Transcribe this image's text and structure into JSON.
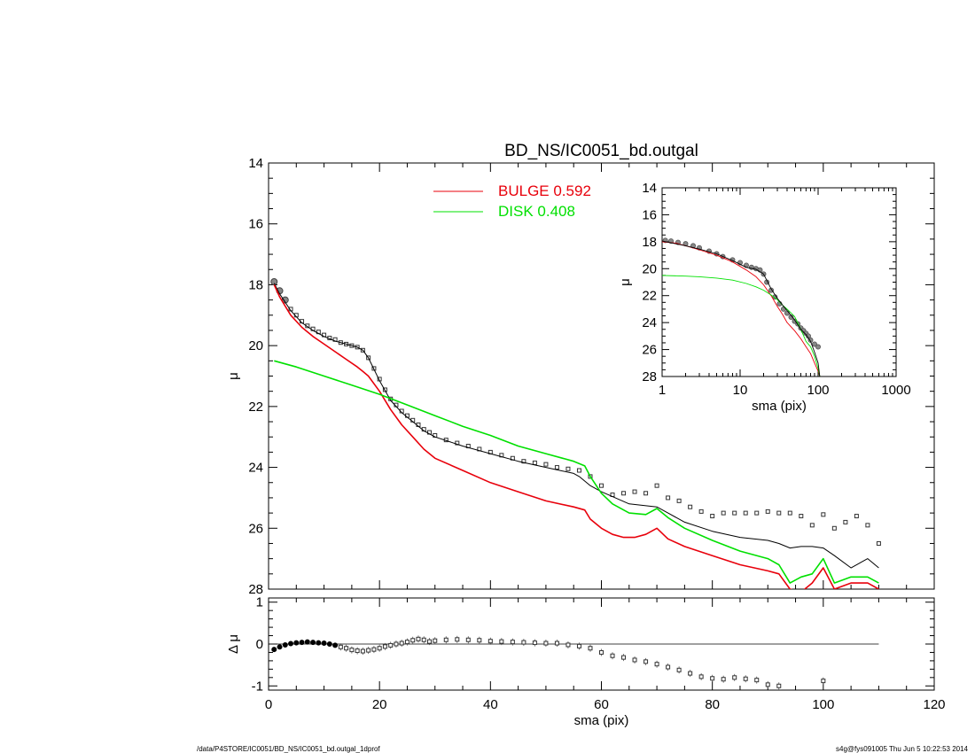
{
  "chart_data": [
    {
      "type": "scatter",
      "title": "BD_NS/IC0051_bd.outgal",
      "xlabel": "",
      "ylabel": "μ",
      "xlim": [
        0,
        120
      ],
      "ylim": [
        28,
        14
      ],
      "y_inverted": true,
      "xticks": [
        "0",
        "20",
        "40",
        "60",
        "80",
        "100",
        "120"
      ],
      "yticks": [
        "14",
        "16",
        "18",
        "20",
        "22",
        "24",
        "26",
        "28"
      ],
      "legend": [
        {
          "label": "BULGE  0.592",
          "color": "#e8000b"
        },
        {
          "label": "DISK  0.408",
          "color": "#00e000"
        }
      ],
      "legend_position": "top-center",
      "series": [
        {
          "role": "data",
          "marker": "square",
          "x": [
            1,
            2,
            3,
            4,
            5,
            6,
            7,
            8,
            9,
            10,
            11,
            12,
            13,
            14,
            15,
            16,
            17,
            18,
            19,
            20,
            21,
            22,
            23,
            24,
            25,
            26,
            27,
            28,
            29,
            30,
            32,
            34,
            36,
            38,
            40,
            42,
            44,
            46,
            48,
            50,
            52,
            54,
            56,
            58,
            60,
            62,
            64,
            66,
            68,
            70,
            72,
            74,
            76,
            78,
            80,
            82,
            84,
            86,
            88,
            90,
            92,
            94,
            96,
            98,
            100,
            102,
            104,
            106,
            108,
            110
          ],
          "y": [
            17.9,
            18.2,
            18.5,
            18.8,
            19.0,
            19.2,
            19.35,
            19.45,
            19.55,
            19.65,
            19.75,
            19.8,
            19.9,
            19.95,
            20.0,
            20.05,
            20.15,
            20.4,
            20.75,
            21.1,
            21.45,
            21.75,
            21.95,
            22.15,
            22.3,
            22.45,
            22.6,
            22.75,
            22.85,
            22.95,
            23.1,
            23.2,
            23.3,
            23.4,
            23.5,
            23.6,
            23.7,
            23.8,
            23.85,
            23.9,
            24.0,
            24.05,
            24.1,
            24.3,
            24.6,
            24.9,
            24.85,
            24.8,
            24.85,
            24.6,
            25.0,
            25.1,
            25.3,
            25.45,
            25.6,
            25.5,
            25.5,
            25.5,
            25.5,
            25.45,
            25.5,
            25.5,
            25.6,
            25.9,
            25.55,
            26.0,
            25.8,
            25.6,
            25.9,
            26.5
          ]
        },
        {
          "role": "model",
          "color": "#000000",
          "x": [
            1,
            2,
            4,
            6,
            8,
            10,
            12,
            14,
            16,
            17,
            18,
            20,
            22,
            24,
            26,
            28,
            30,
            35,
            40,
            45,
            50,
            55,
            56,
            58,
            60,
            65,
            70,
            72,
            75,
            80,
            85,
            90,
            92,
            94,
            96,
            98,
            100,
            102,
            105,
            108,
            110
          ],
          "y": [
            17.95,
            18.3,
            18.85,
            19.25,
            19.5,
            19.7,
            19.85,
            19.95,
            20.05,
            20.15,
            20.4,
            21.15,
            21.8,
            22.2,
            22.5,
            22.8,
            23.0,
            23.3,
            23.55,
            23.8,
            24.0,
            24.2,
            24.3,
            24.6,
            24.8,
            25.2,
            25.3,
            25.5,
            25.8,
            26.1,
            26.3,
            26.4,
            26.5,
            26.65,
            26.6,
            26.6,
            26.65,
            26.9,
            27.3,
            27.0,
            27.3
          ]
        },
        {
          "role": "bulge",
          "color": "#e8000b",
          "x": [
            1,
            2,
            4,
            6,
            8,
            10,
            12,
            14,
            16,
            17,
            18,
            20,
            22,
            24,
            26,
            28,
            30,
            35,
            40,
            45,
            50,
            55,
            57,
            58,
            60,
            62,
            64,
            66,
            68,
            70,
            72,
            75,
            80,
            85,
            90,
            92,
            94,
            96,
            98,
            100,
            102,
            105,
            108,
            110
          ],
          "y": [
            18.0,
            18.4,
            19.0,
            19.4,
            19.7,
            19.95,
            20.2,
            20.45,
            20.7,
            20.85,
            21.0,
            21.5,
            22.1,
            22.6,
            23.0,
            23.4,
            23.7,
            24.1,
            24.5,
            24.8,
            25.1,
            25.3,
            25.4,
            25.7,
            26.0,
            26.2,
            26.3,
            26.3,
            26.2,
            26.0,
            26.35,
            26.6,
            26.9,
            27.2,
            27.4,
            27.5,
            28.0,
            28.1,
            27.8,
            27.3,
            28.0,
            27.8,
            27.8,
            28.0
          ]
        },
        {
          "role": "disk",
          "color": "#00e000",
          "x": [
            1,
            5,
            10,
            15,
            20,
            25,
            30,
            35,
            40,
            45,
            50,
            55,
            57,
            58,
            60,
            62,
            65,
            68,
            70,
            72,
            75,
            80,
            85,
            90,
            92,
            94,
            96,
            98,
            100,
            102,
            105,
            108,
            110
          ],
          "y": [
            20.5,
            20.7,
            21.0,
            21.3,
            21.6,
            21.95,
            22.3,
            22.65,
            22.95,
            23.3,
            23.55,
            23.8,
            23.95,
            24.3,
            24.85,
            25.2,
            25.5,
            25.55,
            25.35,
            25.65,
            26.0,
            26.4,
            26.75,
            27.0,
            27.2,
            27.8,
            27.6,
            27.5,
            27.0,
            27.8,
            27.6,
            27.6,
            27.8
          ]
        }
      ]
    },
    {
      "type": "scatter",
      "title": "",
      "xlabel": "sma (pix)",
      "ylabel": "Δ μ",
      "xlim": [
        0,
        120
      ],
      "ylim": [
        -1.1,
        1.1
      ],
      "xticks": [
        "0",
        "20",
        "40",
        "60",
        "80",
        "100",
        "120"
      ],
      "yticks": [
        "1",
        "0",
        "-1"
      ],
      "reference_line": {
        "y": 0,
        "x": [
          1,
          110
        ]
      },
      "series": [
        {
          "role": "residual",
          "marker": "square",
          "x": [
            1,
            2,
            3,
            4,
            5,
            6,
            7,
            8,
            9,
            10,
            11,
            12,
            13,
            14,
            15,
            16,
            17,
            18,
            19,
            20,
            21,
            22,
            23,
            24,
            25,
            26,
            27,
            28,
            29,
            30,
            32,
            34,
            36,
            38,
            40,
            42,
            44,
            46,
            48,
            50,
            52,
            54,
            56,
            58,
            60,
            62,
            64,
            66,
            68,
            70,
            72,
            74,
            76,
            78,
            80,
            82,
            84,
            86,
            88,
            90,
            92,
            100
          ],
          "y": [
            -0.13,
            -0.07,
            -0.02,
            0.01,
            0.03,
            0.04,
            0.05,
            0.04,
            0.03,
            0.02,
            0.0,
            -0.03,
            -0.07,
            -0.1,
            -0.14,
            -0.16,
            -0.17,
            -0.15,
            -0.13,
            -0.1,
            -0.06,
            -0.03,
            0.0,
            0.02,
            0.05,
            0.09,
            0.12,
            0.1,
            0.06,
            0.08,
            0.1,
            0.11,
            0.1,
            0.09,
            0.07,
            0.06,
            0.05,
            0.04,
            0.03,
            0.02,
            0.02,
            -0.02,
            -0.05,
            -0.1,
            -0.2,
            -0.28,
            -0.32,
            -0.38,
            -0.42,
            -0.48,
            -0.55,
            -0.62,
            -0.7,
            -0.78,
            -0.82,
            -0.84,
            -0.8,
            -0.83,
            -0.86,
            -0.97,
            -1.0,
            -0.88
          ]
        }
      ]
    },
    {
      "type": "scatter",
      "title": "",
      "xlabel": "sma (pix)",
      "ylabel": "μ",
      "x_scale": "log",
      "xlim": [
        1,
        1000
      ],
      "ylim": [
        28,
        14
      ],
      "y_inverted": true,
      "xticks": [
        "1",
        "10",
        "100",
        "1000"
      ],
      "yticks": [
        "14",
        "16",
        "18",
        "20",
        "22",
        "24",
        "26",
        "28"
      ],
      "series": [
        {
          "role": "data",
          "marker": "circle",
          "x": [
            1.1,
            1.3,
            1.6,
            2,
            2.5,
            3,
            4,
            5,
            6,
            8,
            10,
            12,
            14,
            16,
            18,
            20,
            22,
            25,
            28,
            32,
            36,
            40,
            45,
            50,
            55,
            60,
            65,
            70,
            75,
            80,
            90,
            100
          ],
          "y": [
            17.9,
            17.95,
            18.05,
            18.15,
            18.3,
            18.45,
            18.7,
            18.9,
            19.1,
            19.35,
            19.55,
            19.75,
            19.9,
            20.0,
            20.1,
            20.4,
            21.0,
            21.6,
            22.1,
            22.6,
            23.0,
            23.3,
            23.6,
            23.9,
            24.1,
            24.4,
            24.6,
            24.8,
            25.0,
            25.3,
            25.6,
            25.8
          ]
        },
        {
          "role": "bulge",
          "color": "#e8000b",
          "x": [
            1,
            1.5,
            2,
            3,
            5,
            8,
            12,
            16,
            20,
            25,
            30,
            35,
            40,
            50,
            60,
            70,
            80,
            90,
            100,
            105
          ],
          "y": [
            18.0,
            18.1,
            18.3,
            18.6,
            19.0,
            19.5,
            20.1,
            20.6,
            21.2,
            22.0,
            22.8,
            23.4,
            24.0,
            24.6,
            25.2,
            25.8,
            26.3,
            27.0,
            27.6,
            28.0
          ]
        },
        {
          "role": "disk",
          "color": "#00e000",
          "x": [
            1,
            2,
            3,
            5,
            8,
            12,
            16,
            20,
            25,
            30,
            35,
            40,
            50,
            60,
            70,
            80,
            90,
            100,
            105
          ],
          "y": [
            20.5,
            20.55,
            20.6,
            20.7,
            20.85,
            21.1,
            21.35,
            21.6,
            21.95,
            22.3,
            22.7,
            23.0,
            23.55,
            24.5,
            25.4,
            25.8,
            26.5,
            27.4,
            28.0
          ]
        },
        {
          "role": "model",
          "color": "#000000",
          "x": [
            1,
            2,
            3,
            5,
            8,
            12,
            16,
            20,
            25,
            30,
            35,
            40,
            50,
            60,
            70,
            80,
            90,
            100,
            105
          ],
          "y": [
            17.95,
            18.3,
            18.55,
            18.9,
            19.4,
            19.9,
            20.05,
            20.4,
            21.5,
            22.2,
            22.7,
            23.1,
            23.8,
            24.5,
            24.9,
            25.4,
            26.2,
            27.0,
            28.0
          ]
        }
      ]
    }
  ],
  "footer": {
    "left": "/data/P4STORE/IC0051/BD_NS/IC0051_bd.outgal_1dprof",
    "right": "s4g@fys091005  Thu Jun  5 10:22:53 2014"
  }
}
